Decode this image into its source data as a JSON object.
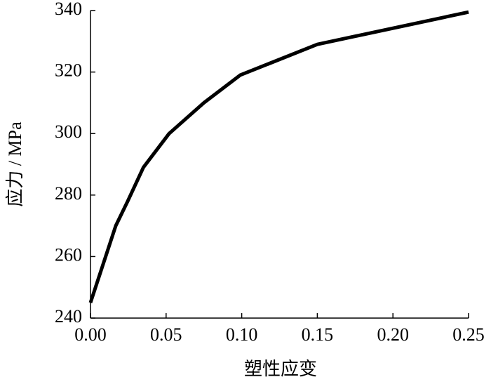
{
  "chart_data": {
    "type": "line",
    "xlabel": "塑性应变",
    "ylabel": "应力 / MPa",
    "x": [
      0.0,
      0.0167,
      0.0246,
      0.035,
      0.052,
      0.075,
      0.099,
      0.15,
      0.25
    ],
    "series": [
      {
        "color": "#000000",
        "values": [
          245,
          270,
          278,
          289,
          300,
          310,
          319,
          329,
          339.5
        ]
      }
    ],
    "xlim": [
      0,
      0.25
    ],
    "xticks": [
      {
        "value": 0,
        "label": "0.00"
      },
      {
        "value": 0.05,
        "label": "0.05"
      },
      {
        "value": 0.1,
        "label": "0.10"
      },
      {
        "value": 0.15,
        "label": "0.15"
      },
      {
        "value": 0.2,
        "label": "0.20"
      },
      {
        "value": 0.25,
        "label": "0.25"
      }
    ],
    "ylim": [
      240,
      340
    ],
    "yticks": [
      240,
      260,
      280,
      300,
      320,
      340
    ]
  }
}
